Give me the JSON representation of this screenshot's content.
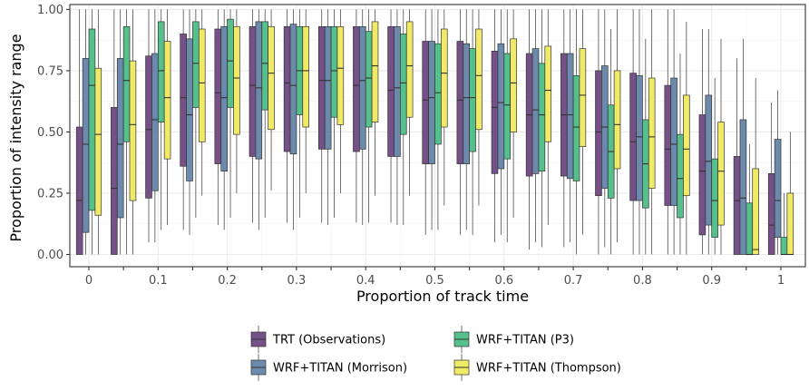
{
  "chart_data": {
    "type": "boxplot",
    "xlabel": "Proportion of track time",
    "ylabel": "Proportion of intensity range",
    "ylim": [
      -0.05,
      1.02
    ],
    "y_ticks": [
      "0.00",
      "0.25",
      "0.50",
      "0.75",
      "1.00"
    ],
    "x_tick_labels": [
      "0",
      "0.1",
      "0.2",
      "0.3",
      "0.4",
      "0.5",
      "0.6",
      "0.7",
      "0.8",
      "0.9",
      "1"
    ],
    "grid": true,
    "legend_position": "bottom",
    "categories": [
      "0",
      "0.05",
      "0.1",
      "0.15",
      "0.2",
      "0.25",
      "0.3",
      "0.35",
      "0.4",
      "0.45",
      "0.5",
      "0.55",
      "0.6",
      "0.65",
      "0.7",
      "0.75",
      "0.8",
      "0.85",
      "0.9",
      "0.95",
      "1"
    ],
    "series": [
      {
        "name": "TRT (Observations)",
        "color": "#755188",
        "boxes": [
          {
            "min": 0.0,
            "q1": 0.0,
            "median": 0.22,
            "q3": 0.52,
            "max": 1.0
          },
          {
            "min": 0.0,
            "q1": 0.0,
            "median": 0.27,
            "q3": 0.6,
            "max": 1.0
          },
          {
            "min": 0.05,
            "q1": 0.23,
            "median": 0.51,
            "q3": 0.81,
            "max": 1.0
          },
          {
            "min": 0.1,
            "q1": 0.36,
            "median": 0.64,
            "q3": 0.9,
            "max": 1.0
          },
          {
            "min": 0.12,
            "q1": 0.37,
            "median": 0.66,
            "q3": 0.92,
            "max": 1.0
          },
          {
            "min": 0.13,
            "q1": 0.4,
            "median": 0.69,
            "q3": 0.93,
            "max": 1.0
          },
          {
            "min": 0.13,
            "q1": 0.42,
            "median": 0.7,
            "q3": 0.93,
            "max": 1.0
          },
          {
            "min": 0.13,
            "q1": 0.43,
            "median": 0.71,
            "q3": 0.93,
            "max": 1.0
          },
          {
            "min": 0.13,
            "q1": 0.42,
            "median": 0.69,
            "q3": 0.93,
            "max": 1.0
          },
          {
            "min": 0.13,
            "q1": 0.4,
            "median": 0.67,
            "q3": 0.93,
            "max": 1.0
          },
          {
            "min": 0.08,
            "q1": 0.37,
            "median": 0.63,
            "q3": 0.87,
            "max": 1.0
          },
          {
            "min": 0.08,
            "q1": 0.37,
            "median": 0.63,
            "q3": 0.87,
            "max": 1.0
          },
          {
            "min": 0.05,
            "q1": 0.33,
            "median": 0.6,
            "q3": 0.83,
            "max": 1.0
          },
          {
            "min": 0.02,
            "q1": 0.32,
            "median": 0.57,
            "q3": 0.82,
            "max": 1.0
          },
          {
            "min": 0.03,
            "q1": 0.32,
            "median": 0.57,
            "q3": 0.82,
            "max": 1.0
          },
          {
            "min": 0.0,
            "q1": 0.24,
            "median": 0.5,
            "q3": 0.75,
            "max": 1.0
          },
          {
            "min": 0.0,
            "q1": 0.22,
            "median": 0.46,
            "q3": 0.74,
            "max": 1.0
          },
          {
            "min": 0.0,
            "q1": 0.2,
            "median": 0.43,
            "q3": 0.69,
            "max": 1.0
          },
          {
            "min": 0.0,
            "q1": 0.08,
            "median": 0.34,
            "q3": 0.57,
            "max": 0.92
          },
          {
            "min": 0.0,
            "q1": 0.0,
            "median": 0.22,
            "q3": 0.4,
            "max": 0.8
          },
          {
            "min": 0.0,
            "q1": 0.0,
            "median": 0.12,
            "q3": 0.33,
            "max": 0.62
          }
        ]
      },
      {
        "name": "WRF+TITAN (Morrison)",
        "color": "#6c8aab",
        "boxes": [
          {
            "min": 0.0,
            "q1": 0.09,
            "median": 0.45,
            "q3": 0.8,
            "max": 1.0
          },
          {
            "min": 0.0,
            "q1": 0.15,
            "median": 0.45,
            "q3": 0.8,
            "max": 1.0
          },
          {
            "min": 0.05,
            "q1": 0.26,
            "median": 0.55,
            "q3": 0.82,
            "max": 1.0
          },
          {
            "min": 0.08,
            "q1": 0.3,
            "median": 0.57,
            "q3": 0.88,
            "max": 1.0
          },
          {
            "min": 0.1,
            "q1": 0.34,
            "median": 0.64,
            "q3": 0.93,
            "max": 1.0
          },
          {
            "min": 0.1,
            "q1": 0.39,
            "median": 0.68,
            "q3": 0.95,
            "max": 1.0
          },
          {
            "min": 0.1,
            "q1": 0.41,
            "median": 0.69,
            "q3": 0.94,
            "max": 1.0
          },
          {
            "min": 0.12,
            "q1": 0.43,
            "median": 0.71,
            "q3": 0.93,
            "max": 1.0
          },
          {
            "min": 0.12,
            "q1": 0.43,
            "median": 0.71,
            "q3": 0.93,
            "max": 1.0
          },
          {
            "min": 0.12,
            "q1": 0.4,
            "median": 0.68,
            "q3": 0.93,
            "max": 1.0
          },
          {
            "min": 0.1,
            "q1": 0.37,
            "median": 0.64,
            "q3": 0.87,
            "max": 1.0
          },
          {
            "min": 0.1,
            "q1": 0.37,
            "median": 0.64,
            "q3": 0.86,
            "max": 1.0
          },
          {
            "min": 0.08,
            "q1": 0.35,
            "median": 0.62,
            "q3": 0.86,
            "max": 1.0
          },
          {
            "min": 0.05,
            "q1": 0.33,
            "median": 0.59,
            "q3": 0.84,
            "max": 1.0
          },
          {
            "min": 0.05,
            "q1": 0.31,
            "median": 0.57,
            "q3": 0.82,
            "max": 1.0
          },
          {
            "min": 0.03,
            "q1": 0.27,
            "median": 0.52,
            "q3": 0.77,
            "max": 1.0
          },
          {
            "min": 0.0,
            "q1": 0.22,
            "median": 0.48,
            "q3": 0.73,
            "max": 1.0
          },
          {
            "min": 0.0,
            "q1": 0.2,
            "median": 0.45,
            "q3": 0.72,
            "max": 1.0
          },
          {
            "min": 0.0,
            "q1": 0.12,
            "median": 0.38,
            "q3": 0.65,
            "max": 0.92
          },
          {
            "min": 0.0,
            "q1": 0.0,
            "median": 0.23,
            "q3": 0.55,
            "max": 0.88
          },
          {
            "min": 0.0,
            "q1": 0.07,
            "median": 0.22,
            "q3": 0.47,
            "max": 0.67
          }
        ]
      },
      {
        "name": "WRF+TITAN (P3)",
        "color": "#55c08b",
        "boxes": [
          {
            "min": 0.0,
            "q1": 0.18,
            "median": 0.69,
            "q3": 0.92,
            "max": 1.0
          },
          {
            "min": 0.0,
            "q1": 0.46,
            "median": 0.71,
            "q3": 0.93,
            "max": 1.0
          },
          {
            "min": 0.1,
            "q1": 0.54,
            "median": 0.75,
            "q3": 0.95,
            "max": 1.0
          },
          {
            "min": 0.15,
            "q1": 0.6,
            "median": 0.78,
            "q3": 0.95,
            "max": 1.0
          },
          {
            "min": 0.15,
            "q1": 0.6,
            "median": 0.79,
            "q3": 0.96,
            "max": 1.0
          },
          {
            "min": 0.15,
            "q1": 0.59,
            "median": 0.78,
            "q3": 0.95,
            "max": 1.0
          },
          {
            "min": 0.15,
            "q1": 0.57,
            "median": 0.75,
            "q3": 0.93,
            "max": 1.0
          },
          {
            "min": 0.15,
            "q1": 0.56,
            "median": 0.75,
            "q3": 0.93,
            "max": 1.0
          },
          {
            "min": 0.13,
            "q1": 0.52,
            "median": 0.72,
            "q3": 0.91,
            "max": 1.0
          },
          {
            "min": 0.12,
            "q1": 0.49,
            "median": 0.7,
            "q3": 0.9,
            "max": 1.0
          },
          {
            "min": 0.1,
            "q1": 0.45,
            "median": 0.66,
            "q3": 0.86,
            "max": 1.0
          },
          {
            "min": 0.08,
            "q1": 0.42,
            "median": 0.64,
            "q3": 0.84,
            "max": 1.0
          },
          {
            "min": 0.05,
            "q1": 0.39,
            "median": 0.61,
            "q3": 0.82,
            "max": 1.0
          },
          {
            "min": 0.03,
            "q1": 0.34,
            "median": 0.57,
            "q3": 0.78,
            "max": 1.0
          },
          {
            "min": 0.0,
            "q1": 0.3,
            "median": 0.52,
            "q3": 0.73,
            "max": 1.0
          },
          {
            "min": 0.0,
            "q1": 0.23,
            "median": 0.42,
            "q3": 0.61,
            "max": 0.92
          },
          {
            "min": 0.0,
            "q1": 0.19,
            "median": 0.37,
            "q3": 0.55,
            "max": 0.88
          },
          {
            "min": 0.0,
            "q1": 0.15,
            "median": 0.31,
            "q3": 0.49,
            "max": 0.82
          },
          {
            "min": 0.0,
            "q1": 0.07,
            "median": 0.22,
            "q3": 0.39,
            "max": 0.72
          },
          {
            "min": 0.0,
            "q1": 0.0,
            "median": 0.0,
            "q3": 0.21,
            "max": 0.45
          },
          {
            "min": 0.0,
            "q1": 0.0,
            "median": 0.0,
            "q3": 0.07,
            "max": 0.25
          }
        ]
      },
      {
        "name": "WRF+TITAN (Thompson)",
        "color": "#f1ea66",
        "boxes": [
          {
            "min": 0.0,
            "q1": 0.16,
            "median": 0.49,
            "q3": 0.76,
            "max": 1.0
          },
          {
            "min": 0.0,
            "q1": 0.22,
            "median": 0.53,
            "q3": 0.79,
            "max": 1.0
          },
          {
            "min": 0.12,
            "q1": 0.39,
            "median": 0.64,
            "q3": 0.87,
            "max": 1.0
          },
          {
            "min": 0.24,
            "q1": 0.46,
            "median": 0.7,
            "q3": 0.92,
            "max": 1.0
          },
          {
            "min": 0.25,
            "q1": 0.49,
            "median": 0.72,
            "q3": 0.93,
            "max": 1.0
          },
          {
            "min": 0.26,
            "q1": 0.51,
            "median": 0.74,
            "q3": 0.93,
            "max": 1.0
          },
          {
            "min": 0.25,
            "q1": 0.52,
            "median": 0.75,
            "q3": 0.93,
            "max": 1.0
          },
          {
            "min": 0.25,
            "q1": 0.53,
            "median": 0.76,
            "q3": 0.93,
            "max": 1.0
          },
          {
            "min": 0.24,
            "q1": 0.54,
            "median": 0.77,
            "q3": 0.95,
            "max": 1.0
          },
          {
            "min": 0.24,
            "q1": 0.56,
            "median": 0.77,
            "q3": 0.95,
            "max": 1.0
          },
          {
            "min": 0.2,
            "q1": 0.52,
            "median": 0.74,
            "q3": 0.92,
            "max": 1.0
          },
          {
            "min": 0.2,
            "q1": 0.51,
            "median": 0.73,
            "q3": 0.92,
            "max": 1.0
          },
          {
            "min": 0.15,
            "q1": 0.5,
            "median": 0.7,
            "q3": 0.88,
            "max": 1.0
          },
          {
            "min": 0.12,
            "q1": 0.46,
            "median": 0.67,
            "q3": 0.85,
            "max": 1.0
          },
          {
            "min": 0.08,
            "q1": 0.44,
            "median": 0.65,
            "q3": 0.84,
            "max": 1.0
          },
          {
            "min": 0.05,
            "q1": 0.35,
            "median": 0.53,
            "q3": 0.75,
            "max": 1.0
          },
          {
            "min": 0.0,
            "q1": 0.27,
            "median": 0.48,
            "q3": 0.72,
            "max": 1.0
          },
          {
            "min": 0.0,
            "q1": 0.24,
            "median": 0.43,
            "q3": 0.65,
            "max": 0.95
          },
          {
            "min": 0.0,
            "q1": 0.12,
            "median": 0.34,
            "q3": 0.54,
            "max": 0.88
          },
          {
            "min": 0.0,
            "q1": 0.0,
            "median": 0.02,
            "q3": 0.35,
            "max": 0.72
          },
          {
            "min": 0.0,
            "q1": 0.0,
            "median": 0.0,
            "q3": 0.25,
            "max": 0.5
          }
        ]
      }
    ]
  }
}
